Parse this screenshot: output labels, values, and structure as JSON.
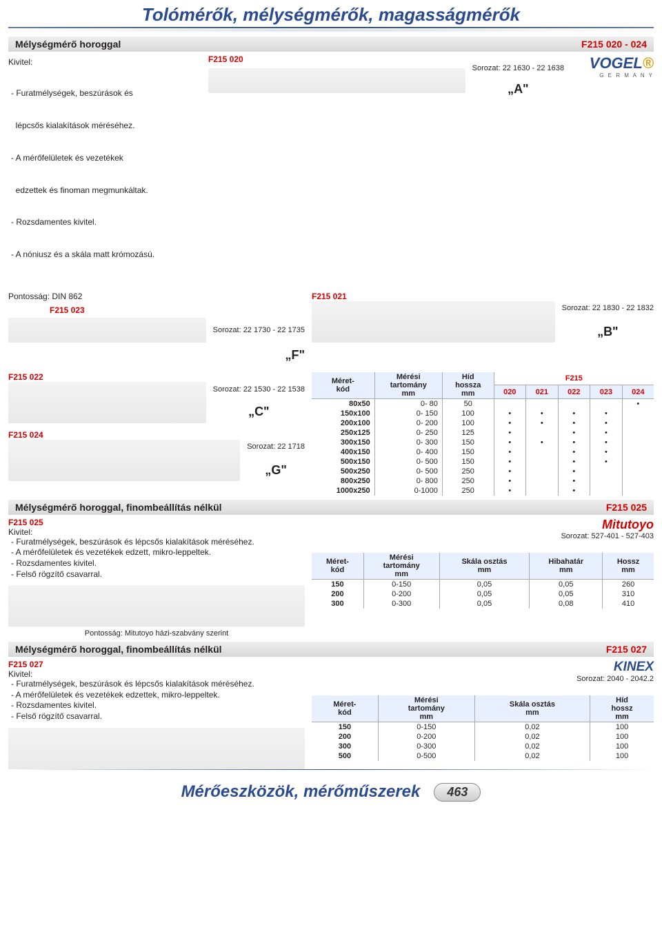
{
  "page_title": "Tolómérők, mélységmérők, magasságmérők",
  "footer_title": "Mérőeszközök, mérőműszerek",
  "page_number": "463",
  "sec1": {
    "title": "Mélységmérő horoggal",
    "code": "F215 020 - 024",
    "kivitel_head": "Kivitel:",
    "kivitel": [
      "- Furatmélységek, beszúrások és",
      "  lépcsős kialakítások méréséhez.",
      "- A mérőfelületek és vezetékek",
      "  edzettek és finoman megmunkáltak.",
      "- Rozsdamentes kivitel.",
      "- A nóniusz és a skála matt krómozású."
    ],
    "f020": "F215 020",
    "s020": "Sorozat: 22 1630 - 22 1638",
    "labA": "„A\"",
    "brand": "VOGEL",
    "brandSub": "G E R M A N Y",
    "pontossag": "Pontosság: DIN 862",
    "f021": "F215 021",
    "f023": "F215 023",
    "s023": "Sorozat: 22 1730 - 22 1735",
    "s021": "Sorozat: 22 1830 - 22 1832",
    "labB": "„B\"",
    "labF": "„F\"",
    "f022": "F215 022",
    "s022": "Sorozat: 22 1530 - 22 1538",
    "labC": "„C\"",
    "f024": "F215 024",
    "s024": "Sorozat: 22 1718",
    "labG": "„G\"",
    "tbl": {
      "h1": "Méret-\nkód",
      "h2": "Mérési\ntartomány\nmm",
      "h3": "Híd\nhossza\nmm",
      "hF": "F215",
      "c020": "020",
      "c021": "021",
      "c022": "022",
      "c023": "023",
      "c024": "024",
      "rows": [
        {
          "k": "80x50",
          "r": "0-   80",
          "h": "50",
          "d": [
            "",
            "",
            "",
            "",
            "•"
          ]
        },
        {
          "k": "150x100",
          "r": "0- 150",
          "h": "100",
          "d": [
            "•",
            "•",
            "•",
            "•",
            ""
          ]
        },
        {
          "k": "200x100",
          "r": "0- 200",
          "h": "100",
          "d": [
            "•",
            "•",
            "•",
            "•",
            ""
          ]
        },
        {
          "k": "250x125",
          "r": "0- 250",
          "h": "125",
          "d": [
            "•",
            "",
            "•",
            "•",
            ""
          ]
        },
        {
          "k": "300x150",
          "r": "0- 300",
          "h": "150",
          "d": [
            "•",
            "•",
            "•",
            "•",
            ""
          ]
        },
        {
          "k": "400x150",
          "r": "0- 400",
          "h": "150",
          "d": [
            "•",
            "",
            "•",
            "•",
            ""
          ]
        },
        {
          "k": "500x150",
          "r": "0- 500",
          "h": "150",
          "d": [
            "•",
            "",
            "•",
            "•",
            ""
          ]
        },
        {
          "k": "500x250",
          "r": "0- 500",
          "h": "250",
          "d": [
            "•",
            "",
            "•",
            "",
            ""
          ]
        },
        {
          "k": "800x250",
          "r": "0- 800",
          "h": "250",
          "d": [
            "•",
            "",
            "•",
            "",
            ""
          ]
        },
        {
          "k": "1000x250",
          "r": "0-1000",
          "h": "250",
          "d": [
            "•",
            "",
            "•",
            "",
            ""
          ]
        }
      ]
    }
  },
  "sec2": {
    "title": "Mélységmérő horoggal, finombeállítás nélkül",
    "code": "F215 025",
    "f": "F215 025",
    "kivitel_head": "Kivitel:",
    "kivitel": [
      "- Furatmélységek, beszúrások és lépcsős kialakítások méréséhez.",
      "- A mérőfelületek és vezetékek edzett, mikro-leppeltek.",
      "- Rozsdamentes kivitel.",
      "- Felső rögzítő csavarral."
    ],
    "pontossag": "Pontosság: Mitutoyo házi-szabvány szerint",
    "brand": "Mitutoyo",
    "sorozat": "Sorozat: 527-401 - 527-403",
    "tbl": {
      "h1": "Méret-\nkód",
      "h2": "Mérési\ntartomány\nmm",
      "h3": "Skála osztás\nmm",
      "h4": "Hibahatár\nmm",
      "h5": "Hossz\nmm",
      "rows": [
        {
          "k": "150",
          "r": "0-150",
          "s": "0,05",
          "e": "0,05",
          "l": "260"
        },
        {
          "k": "200",
          "r": "0-200",
          "s": "0,05",
          "e": "0,05",
          "l": "310"
        },
        {
          "k": "300",
          "r": "0-300",
          "s": "0,05",
          "e": "0,08",
          "l": "410"
        }
      ]
    }
  },
  "sec3": {
    "title": "Mélységmérő horoggal, finombeállítás nélkül",
    "code": "F215 027",
    "f": "F215 027",
    "kivitel_head": "Kivitel:",
    "kivitel": [
      "- Furatmélységek, beszúrások és lépcsős kialakítások méréséhez.",
      "- A mérőfelületek és vezetékek edzettek, mikro-leppeltek.",
      "- Rozsdamentes kivitel.",
      "- Felső rögzítő csavarral."
    ],
    "brand": "KINEX",
    "sorozat": "Sorozat: 2040 - 2042.2",
    "tbl": {
      "h1": "Méret-\nkód",
      "h2": "Mérési\ntartomány\nmm",
      "h3": "Skála osztás\nmm",
      "h4": "Híd\nhossz\nmm",
      "rows": [
        {
          "k": "150",
          "r": "0-150",
          "s": "0,02",
          "h": "100"
        },
        {
          "k": "200",
          "r": "0-200",
          "s": "0,02",
          "h": "100"
        },
        {
          "k": "300",
          "r": "0-300",
          "s": "0,02",
          "h": "100"
        },
        {
          "k": "500",
          "r": "0-500",
          "s": "0,02",
          "h": "100"
        }
      ]
    }
  }
}
